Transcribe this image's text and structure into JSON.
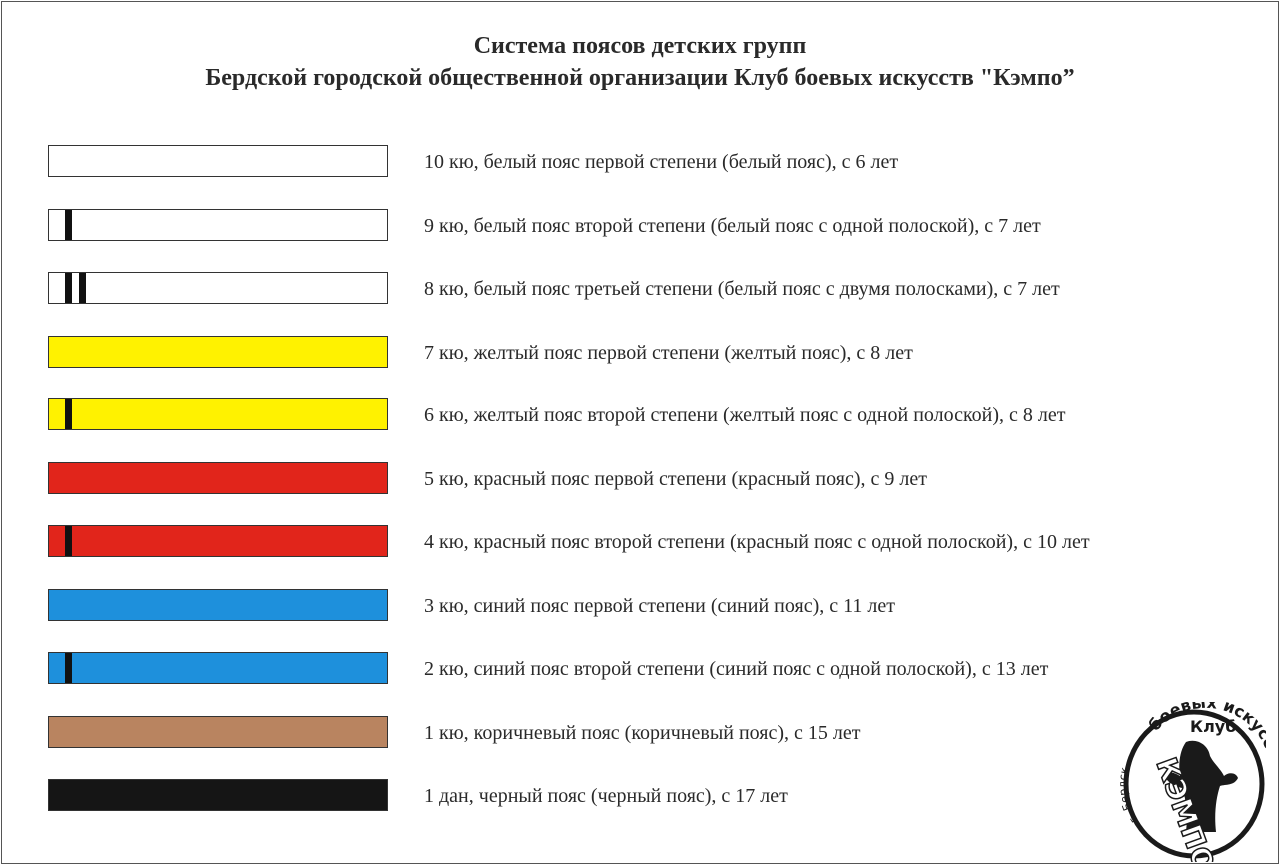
{
  "header": {
    "line1": "Система поясов детских групп",
    "line2": "Бердской городской общественной организации Клуб боевых искусств \"Кэмпо”"
  },
  "belts": [
    {
      "label": "10 кю, белый пояс первой степени (белый пояс), с 6 лет",
      "color": "#ffffff",
      "stripes": 0
    },
    {
      "label": "9 кю, белый пояс второй степени (белый пояс с одной полоской), с 7 лет",
      "color": "#ffffff",
      "stripes": 1
    },
    {
      "label": "8 кю, белый пояс третьей степени (белый пояс с двумя полосками), с 7 лет",
      "color": "#ffffff",
      "stripes": 2
    },
    {
      "label": "7 кю, желтый пояс первой степени (желтый пояс), с 8 лет",
      "color": "#fff200",
      "stripes": 0
    },
    {
      "label": "6 кю, желтый пояс второй степени (желтый пояс с одной полоской), с 8 лет",
      "color": "#fff200",
      "stripes": 1
    },
    {
      "label": "5 кю, красный пояс первой степени (красный пояс), с 9 лет",
      "color": "#e1251b",
      "stripes": 0
    },
    {
      "label": "4 кю, красный пояс второй степени (красный пояс с одной полоской), с 10 лет",
      "color": "#e1251b",
      "stripes": 1
    },
    {
      "label": "3 кю, синий пояс первой степени (синий пояс), с 11 лет",
      "color": "#1e90dc",
      "stripes": 0
    },
    {
      "label": "2 кю, синий пояс второй степени (синий пояс с одной полоской), с 13 лет",
      "color": "#1e90dc",
      "stripes": 1
    },
    {
      "label": "1 кю, коричневый пояс (коричневый пояс), с 15 лет",
      "color": "#b98460",
      "stripes": 0
    },
    {
      "label": "1 дан, черный пояс (черный пояс), с 17 лет",
      "color": "#151515",
      "stripes": 0
    }
  ],
  "logo": {
    "icon": "club-emblem-icon",
    "top_text": "Клуб",
    "right_text": "боевых искусств",
    "left_text": "г. Бердск",
    "center_text": "КЭМПО"
  }
}
